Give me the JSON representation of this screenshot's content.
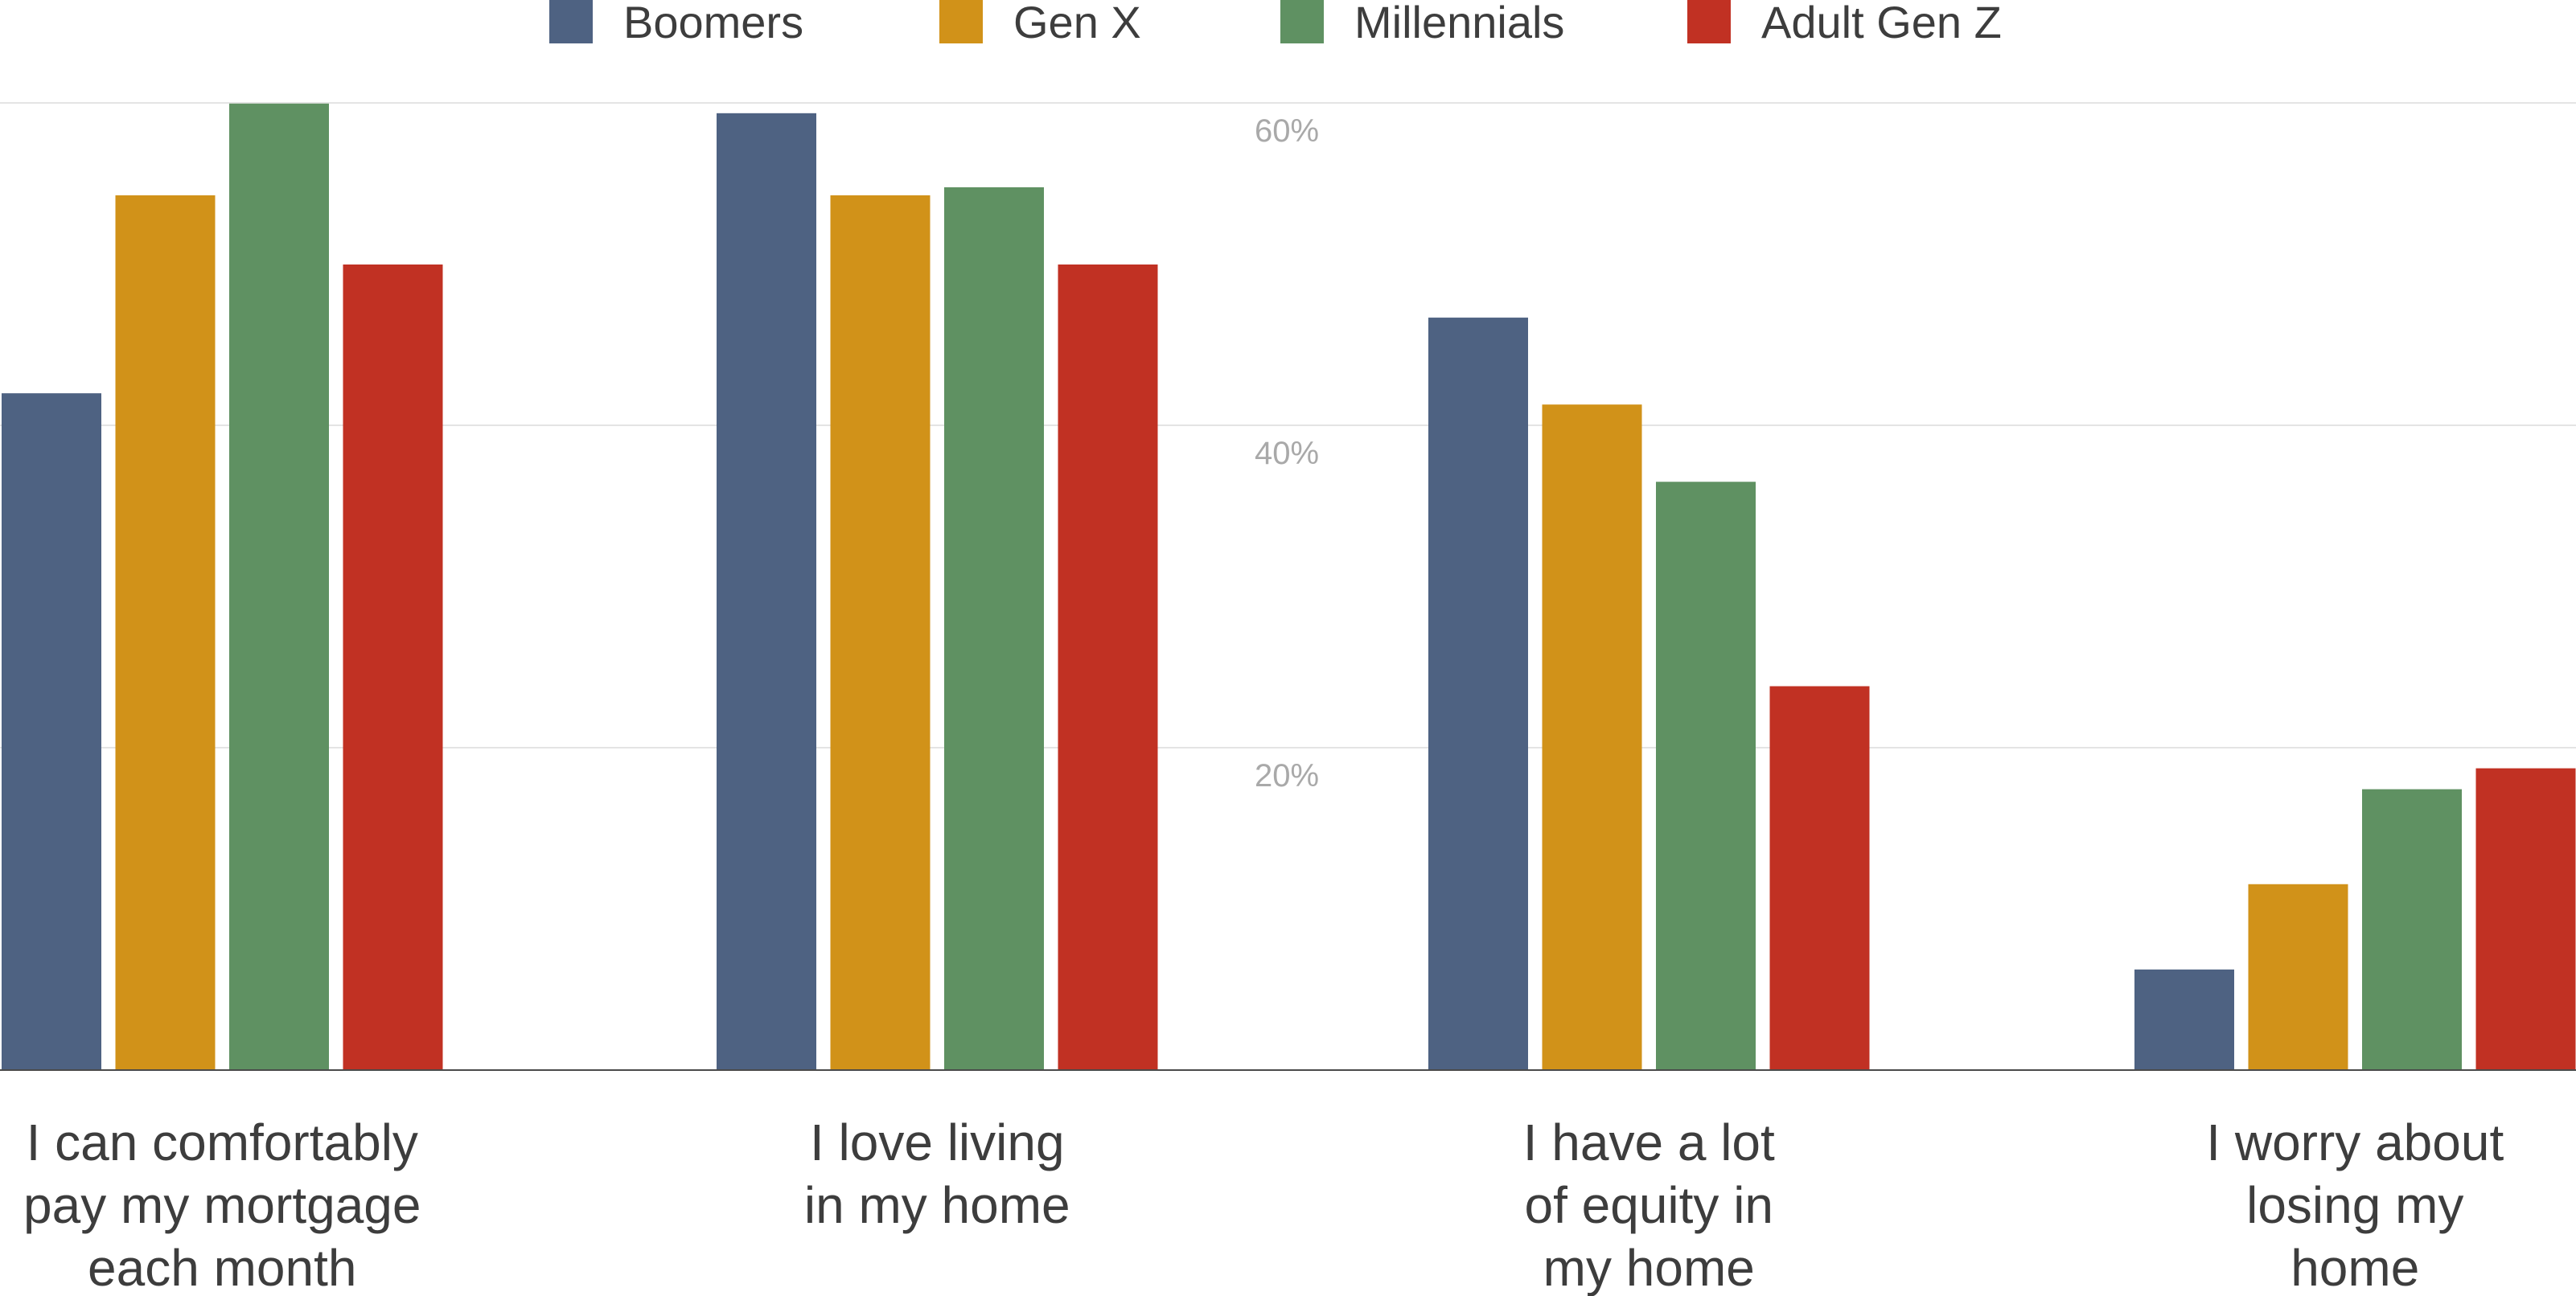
{
  "chart_data": {
    "type": "bar",
    "title": "",
    "xlabel": "",
    "ylabel": "",
    "ylim": [
      0,
      60
    ],
    "yticks": [
      {
        "value": 20,
        "label": "20%"
      },
      {
        "value": 40,
        "label": "40%"
      },
      {
        "value": 60,
        "label": "60%"
      }
    ],
    "grid": true,
    "legend": "top",
    "categories": [
      "I can comfortably pay my mortgage each month",
      "I love living in my home",
      "I have a lot of equity in my home",
      "I worry about losing my home"
    ],
    "category_label_lines": [
      [
        "I can comfortably",
        "pay my mortgage",
        "each month"
      ],
      [
        "I love living",
        "in my home"
      ],
      [
        "I have a lot",
        "of equity in",
        "my home"
      ],
      [
        "I worry about",
        "losing my",
        "home"
      ]
    ],
    "series": [
      {
        "name": "Boomers",
        "color": "#4e6282",
        "values": [
          42,
          59.4,
          46.7,
          6.2
        ]
      },
      {
        "name": "Gen X",
        "color": "#d19219",
        "values": [
          54.3,
          54.3,
          41.3,
          11.5
        ]
      },
      {
        "name": "Millennials",
        "color": "#5f9162",
        "values": [
          60,
          54.8,
          36.5,
          17.4
        ]
      },
      {
        "name": "Adult Gen Z",
        "color": "#c13123",
        "values": [
          50,
          50,
          23.8,
          18.7
        ]
      }
    ]
  }
}
